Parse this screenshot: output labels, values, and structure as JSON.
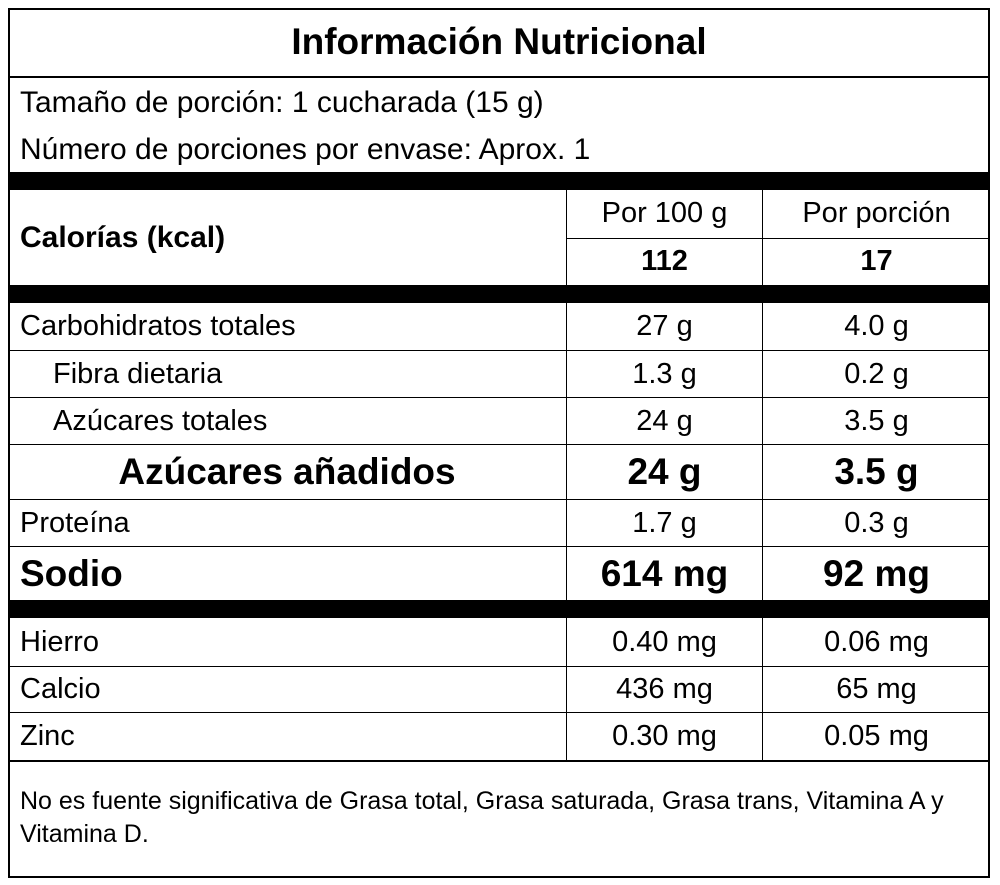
{
  "title": "Información Nutricional",
  "serving": {
    "size": "Tamaño de porción: 1 cucharada (15 g)",
    "count": "Número de porciones por envase: Aprox. 1"
  },
  "calories": {
    "label": "Calorías (kcal)",
    "headers": [
      "Por 100 g",
      "Por porción"
    ],
    "values": [
      "112",
      "17"
    ]
  },
  "table": {
    "rows": [
      [
        "Carbohidratos totales",
        "27 g",
        "4.0 g"
      ],
      [
        "Fibra dietaria",
        "1.3 g",
        "0.2 g"
      ],
      [
        "Azúcares totales",
        "24 g",
        "3.5 g"
      ],
      [
        "Azúcares añadidos",
        "24 g",
        "3.5 g"
      ],
      [
        "Proteína",
        "1.7 g",
        "0.3 g"
      ],
      [
        "Sodio",
        "614 mg",
        "92 mg"
      ],
      [
        "Hierro",
        "0.40 mg",
        "0.06 mg"
      ],
      [
        "Calcio",
        "436 mg",
        "65 mg"
      ],
      [
        "Zinc",
        "0.30 mg",
        "0.05 mg"
      ]
    ]
  },
  "footnote": "No es fuente significativa de Grasa total, Grasa saturada, Grasa trans, Vitamina A y Vitamina D."
}
